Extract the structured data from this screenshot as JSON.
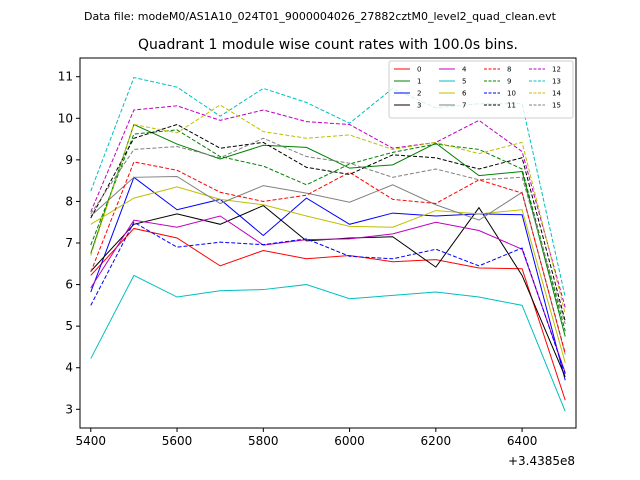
{
  "header": {
    "data_file": "Data file: modeM0/AS1A10_024T01_9000004026_27882cztM0_level2_quad_clean.evt"
  },
  "chart_data": {
    "type": "line",
    "title": "Quadrant 1 module wise count rates with 100.0s bins.",
    "xlabel": "",
    "ylabel": "",
    "x_offset_label": "+3.4385e8",
    "x": [
      5400,
      5500,
      5600,
      5700,
      5800,
      5900,
      6000,
      6100,
      6200,
      6300,
      6400,
      6500
    ],
    "xlim": [
      5375,
      6525
    ],
    "ylim": [
      2.55,
      11.45
    ],
    "xticks": [
      5400,
      5600,
      5800,
      6000,
      6200,
      6400
    ],
    "xtick_labels": [
      "5400",
      "5600",
      "5800",
      "6000",
      "6200",
      "6400"
    ],
    "yticks": [
      3,
      4,
      5,
      6,
      7,
      8,
      9,
      10,
      11
    ],
    "ytick_labels": [
      "3",
      "4",
      "5",
      "6",
      "7",
      "8",
      "9",
      "10",
      "11"
    ],
    "legend_position": "top-right",
    "series": [
      {
        "name": "0",
        "color": "#ff0000",
        "dash": "solid",
        "values": [
          6.22,
          7.35,
          7.12,
          6.45,
          6.82,
          6.62,
          6.7,
          6.55,
          6.6,
          6.4,
          6.38,
          3.22
        ]
      },
      {
        "name": "1",
        "color": "#008000",
        "dash": "solid",
        "values": [
          6.75,
          9.85,
          9.38,
          9.02,
          9.35,
          9.3,
          8.8,
          8.88,
          9.4,
          8.62,
          8.72,
          4.75
        ]
      },
      {
        "name": "2",
        "color": "#0000ff",
        "dash": "solid",
        "values": [
          5.82,
          8.58,
          7.8,
          8.05,
          7.18,
          8.08,
          7.45,
          7.72,
          7.65,
          7.7,
          7.68,
          3.7
        ]
      },
      {
        "name": "3",
        "color": "#000000",
        "dash": "solid",
        "values": [
          6.32,
          7.45,
          7.7,
          7.45,
          7.9,
          7.05,
          7.12,
          7.15,
          6.42,
          7.85,
          6.22,
          3.78
        ]
      },
      {
        "name": "4",
        "color": "#bf00bf",
        "dash": "solid",
        "values": [
          5.92,
          7.55,
          7.38,
          7.65,
          6.95,
          7.08,
          7.1,
          7.22,
          7.5,
          7.3,
          6.85,
          3.88
        ]
      },
      {
        "name": "5",
        "color": "#00bfbf",
        "dash": "solid",
        "values": [
          4.22,
          6.22,
          5.7,
          5.85,
          5.88,
          6.0,
          5.66,
          5.74,
          5.82,
          5.7,
          5.5,
          2.95
        ]
      },
      {
        "name": "6",
        "color": "#bfbf00",
        "dash": "solid",
        "values": [
          7.45,
          8.08,
          8.35,
          8.05,
          7.92,
          7.65,
          7.4,
          7.38,
          7.78,
          7.7,
          7.8,
          4.12
        ]
      },
      {
        "name": "7",
        "color": "#808080",
        "dash": "solid",
        "values": [
          7.65,
          8.58,
          8.6,
          7.95,
          8.38,
          8.2,
          7.98,
          8.4,
          7.92,
          7.55,
          8.22,
          4.32
        ]
      },
      {
        "name": "8",
        "color": "#ff0000",
        "dash": "dashed",
        "values": [
          6.3,
          8.95,
          8.75,
          8.22,
          8.0,
          8.15,
          8.7,
          8.05,
          7.95,
          8.52,
          8.2,
          4.35
        ]
      },
      {
        "name": "9",
        "color": "#008000",
        "dash": "dashed",
        "values": [
          6.95,
          9.62,
          9.72,
          9.08,
          8.85,
          8.4,
          8.9,
          9.18,
          9.38,
          9.25,
          8.78,
          4.88
        ]
      },
      {
        "name": "10",
        "color": "#0000ff",
        "dash": "dashed",
        "values": [
          5.5,
          7.5,
          6.9,
          7.02,
          6.96,
          7.1,
          6.68,
          6.62,
          6.85,
          6.45,
          6.88,
          3.85
        ]
      },
      {
        "name": "11",
        "color": "#000000",
        "dash": "dashed",
        "values": [
          7.6,
          9.52,
          9.85,
          9.28,
          9.42,
          8.82,
          8.65,
          9.12,
          9.05,
          8.78,
          9.05,
          5.12
        ]
      },
      {
        "name": "12",
        "color": "#bf00bf",
        "dash": "dashed",
        "values": [
          7.75,
          10.2,
          10.3,
          9.95,
          10.2,
          9.92,
          9.85,
          9.28,
          9.42,
          9.95,
          9.2,
          5.45
        ]
      },
      {
        "name": "13",
        "color": "#00bfbf",
        "dash": "dashed",
        "values": [
          8.25,
          10.98,
          10.75,
          10.05,
          10.72,
          10.38,
          9.88,
          10.72,
          10.25,
          10.35,
          10.35,
          5.7
        ]
      },
      {
        "name": "14",
        "color": "#bfbf00",
        "dash": "dashed",
        "values": [
          6.7,
          9.85,
          9.65,
          10.32,
          9.68,
          9.52,
          9.6,
          9.25,
          9.42,
          9.15,
          9.42,
          5.3
        ]
      },
      {
        "name": "15",
        "color": "#808080",
        "dash": "dashed",
        "values": [
          7.7,
          9.25,
          9.32,
          9.05,
          9.52,
          9.08,
          8.92,
          8.58,
          8.78,
          8.52,
          8.58,
          5.05
        ]
      }
    ]
  }
}
